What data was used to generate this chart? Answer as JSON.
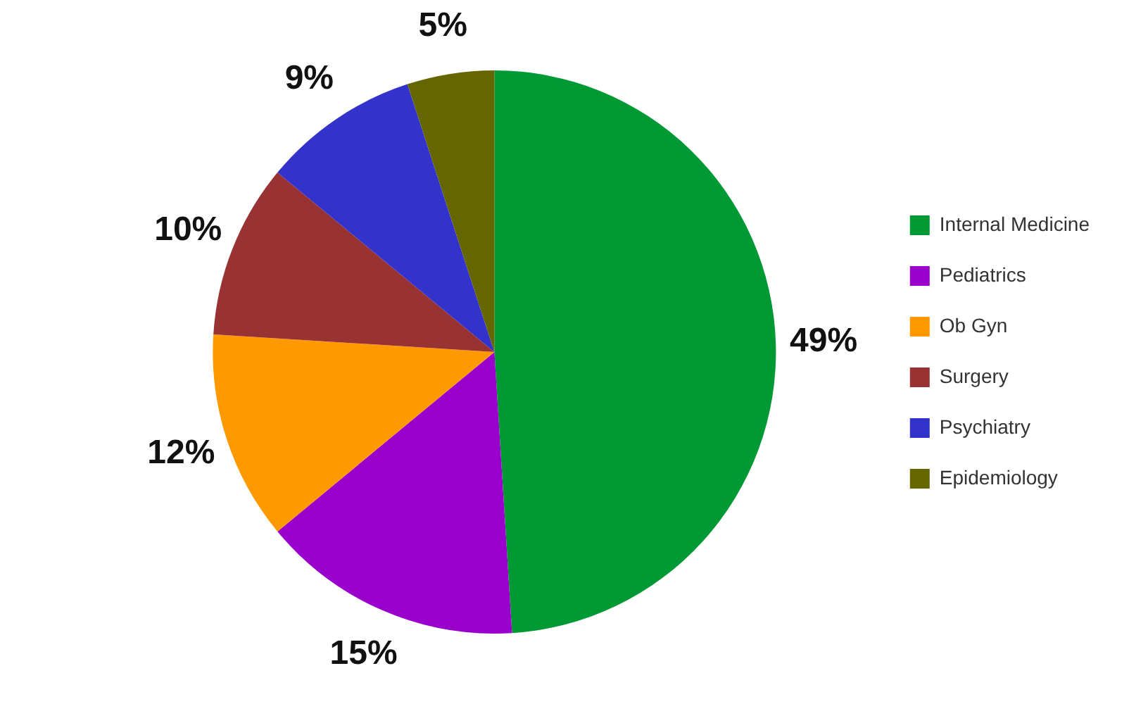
{
  "chart_data": {
    "type": "pie",
    "categories": [
      "Internal Medicine",
      "Pediatrics",
      "Ob Gyn",
      "Surgery",
      "Psychiatry",
      "Epidemiology"
    ],
    "values": [
      49,
      15,
      12,
      10,
      9,
      5
    ],
    "colors": [
      "#009933",
      "#9900cc",
      "#ff9900",
      "#993333",
      "#3333cc",
      "#666600"
    ],
    "value_labels": [
      "49%",
      "15%",
      "12%",
      "10%",
      "9%",
      "5%"
    ],
    "legend": "right"
  }
}
